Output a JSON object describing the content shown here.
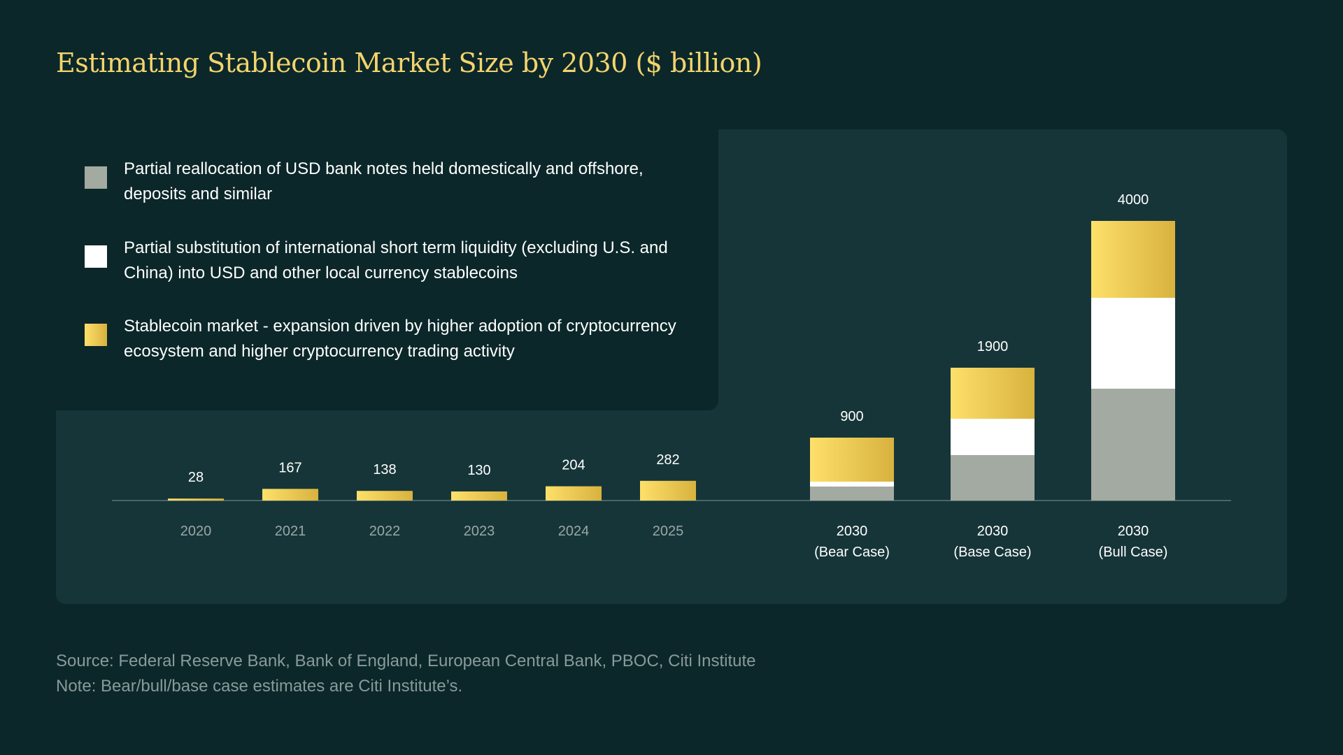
{
  "title": "Estimating Stablecoin Market Size by 2030 ($ billion)",
  "legend": [
    {
      "key": "reallocation",
      "swatch": "gray",
      "color": "#a3aaa1",
      "text": "Partial reallocation of USD bank notes held domestically and offshore, deposits and similar"
    },
    {
      "key": "substitution",
      "swatch": "white",
      "color": "#ffffff",
      "text": "Partial substitution of international short term liquidity (excluding U.S. and China) into USD and other local currency stablecoins"
    },
    {
      "key": "expansion",
      "swatch": "gold",
      "color": "#e9c552",
      "text": "Stablecoin market - expansion driven by higher adoption of cryptocurrency ecosystem and higher cryptocurrency trading activity"
    }
  ],
  "chart_data": {
    "type": "bar",
    "stacked": true,
    "categories": [
      "2020",
      "2021",
      "2022",
      "2023",
      "2024",
      "2025",
      "2030 (Bear Case)",
      "2030 (Base Case)",
      "2030 (Bull Case)"
    ],
    "category_lines": [
      [
        "2020"
      ],
      [
        "2021"
      ],
      [
        "2022"
      ],
      [
        "2023"
      ],
      [
        "2024"
      ],
      [
        "2025"
      ],
      [
        "2030",
        "(Bear Case)"
      ],
      [
        "2030",
        "(Base Case)"
      ],
      [
        "2030",
        "(Bull Case)"
      ]
    ],
    "series": [
      {
        "name": "Partial reallocation of USD bank notes held domestically and offshore, deposits and similar",
        "color": "#a3aaa1",
        "values": [
          0,
          0,
          0,
          0,
          0,
          0,
          200,
          650,
          1600
        ]
      },
      {
        "name": "Partial substitution of international short term liquidity (excluding U.S. and China) into USD and other local currency stablecoins",
        "color": "#ffffff",
        "values": [
          0,
          0,
          0,
          0,
          0,
          0,
          70,
          520,
          1300
        ]
      },
      {
        "name": "Stablecoin market - expansion driven by higher adoption of cryptocurrency ecosystem and higher cryptocurrency trading activity",
        "color": "#e9c552",
        "values": [
          28,
          167,
          138,
          130,
          204,
          282,
          630,
          730,
          1100
        ]
      }
    ],
    "totals": [
      "28",
      "167",
      "138",
      "130",
      "204",
      "282",
      "900",
      "1900",
      "4000"
    ],
    "ylim": [
      0,
      4000
    ],
    "xlabel": "",
    "ylabel": "",
    "grid": false,
    "legend_position": "top-left"
  },
  "footer": {
    "source": "Source: Federal Reserve Bank, Bank of England, European Central Bank, PBOC, Citi Institute",
    "note": "Note: Bear/bull/base case estimates are Citi Institute’s."
  }
}
